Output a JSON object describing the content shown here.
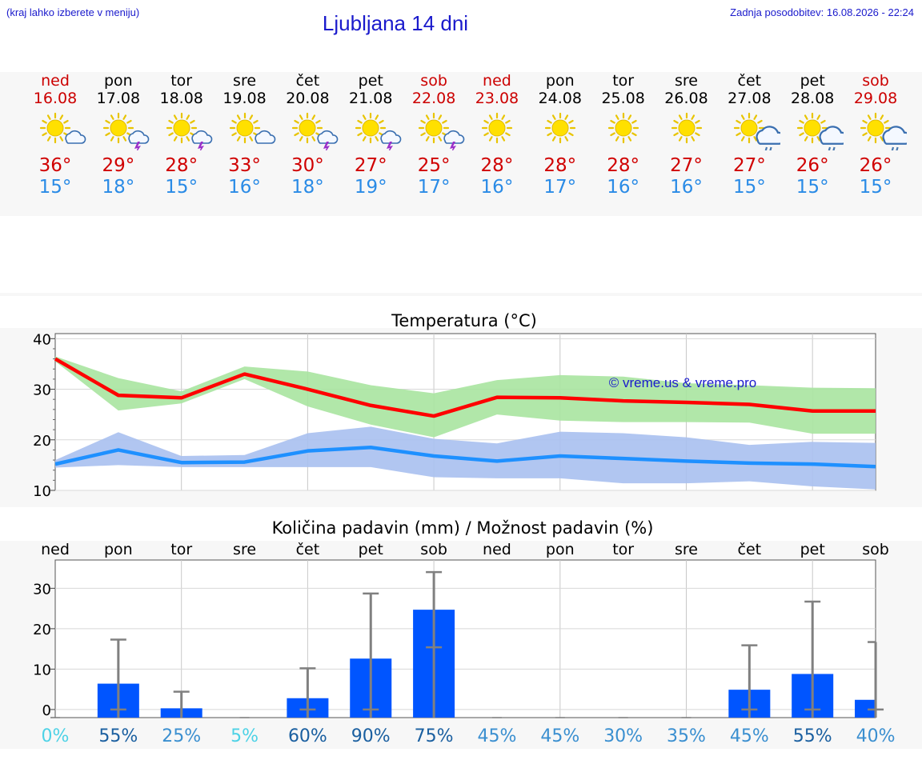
{
  "header": {
    "hint": "(kraj lahko izberete v meniju)",
    "title": "Ljubljana 14 dni",
    "updated": "Zadnja posodobitev: 16.08.2026 - 22:24"
  },
  "days": [
    {
      "name": "ned",
      "date": "16.08",
      "weekend": true,
      "icon": "sun-cloud-icon",
      "tmax": "36°",
      "tmin": "15°"
    },
    {
      "name": "pon",
      "date": "17.08",
      "weekend": false,
      "icon": "sun-storm-icon",
      "tmax": "29°",
      "tmin": "18°"
    },
    {
      "name": "tor",
      "date": "18.08",
      "weekend": false,
      "icon": "sun-storm-icon",
      "tmax": "28°",
      "tmin": "15°"
    },
    {
      "name": "sre",
      "date": "19.08",
      "weekend": false,
      "icon": "sun-cloud-icon",
      "tmax": "33°",
      "tmin": "16°"
    },
    {
      "name": "čet",
      "date": "20.08",
      "weekend": false,
      "icon": "sun-storm-icon",
      "tmax": "30°",
      "tmin": "18°"
    },
    {
      "name": "pet",
      "date": "21.08",
      "weekend": false,
      "icon": "sun-storm-icon",
      "tmax": "27°",
      "tmin": "19°"
    },
    {
      "name": "sob",
      "date": "22.08",
      "weekend": true,
      "icon": "sun-storm-icon",
      "tmax": "25°",
      "tmin": "17°"
    },
    {
      "name": "ned",
      "date": "23.08",
      "weekend": true,
      "icon": "sun-icon",
      "tmax": "28°",
      "tmin": "16°"
    },
    {
      "name": "pon",
      "date": "24.08",
      "weekend": false,
      "icon": "sun-icon",
      "tmax": "28°",
      "tmin": "17°"
    },
    {
      "name": "tor",
      "date": "25.08",
      "weekend": false,
      "icon": "sun-icon",
      "tmax": "28°",
      "tmin": "16°"
    },
    {
      "name": "sre",
      "date": "26.08",
      "weekend": false,
      "icon": "sun-icon",
      "tmax": "27°",
      "tmin": "16°"
    },
    {
      "name": "čet",
      "date": "27.08",
      "weekend": false,
      "icon": "sun-rain-icon",
      "tmax": "27°",
      "tmin": "15°"
    },
    {
      "name": "pet",
      "date": "28.08",
      "weekend": false,
      "icon": "sun-rain-icon",
      "tmax": "26°",
      "tmin": "15°"
    },
    {
      "name": "sob",
      "date": "29.08",
      "weekend": true,
      "icon": "sun-rain-icon",
      "tmax": "26°",
      "tmin": "15°"
    }
  ],
  "colors": {
    "accent": "#1a1acc",
    "weekend": "#cc0000",
    "max_line": "#ff0000",
    "max_band": "#a8e4a0",
    "min_line": "#1e90ff",
    "min_band": "#a8c0f0",
    "bar": "#0055ff",
    "error_bar": "#808080"
  },
  "chart_data": [
    {
      "type": "line",
      "title": "Temperatura (°C)",
      "watermark": "© vreme.us & vreme.pro",
      "ylim": [
        10,
        41
      ],
      "yticks": [
        10,
        20,
        30,
        40
      ],
      "grid": true,
      "series": [
        {
          "name": "max",
          "values": [
            36,
            28.8,
            28.3,
            33,
            30,
            26.8,
            24.7,
            28.4,
            28.3,
            27.7,
            27.4,
            27,
            25.7,
            25.7
          ],
          "band_low": [
            35.5,
            25.8,
            27.2,
            32,
            26.6,
            23,
            20.5,
            25,
            23.8,
            23.5,
            23.5,
            23.4,
            21.2,
            21.2
          ],
          "band_high": [
            36.5,
            32.2,
            29.6,
            34.5,
            33.5,
            30.8,
            29.2,
            31.8,
            32.8,
            32.5,
            31.2,
            30.8,
            30.3,
            30.2
          ]
        },
        {
          "name": "min",
          "values": [
            15.2,
            18,
            15.5,
            15.6,
            17.8,
            18.5,
            16.8,
            15.8,
            16.8,
            16.3,
            15.8,
            15.4,
            15.2,
            14.7
          ],
          "band_low": [
            14.5,
            15,
            14.6,
            14.6,
            14.6,
            14.6,
            12.6,
            12.4,
            12.4,
            11.4,
            11.4,
            11.8,
            10.8,
            10.2
          ],
          "band_high": [
            16,
            21.5,
            16.8,
            17,
            21.3,
            22.6,
            20.2,
            19.3,
            21.6,
            21.3,
            20.5,
            19,
            19.6,
            19.4
          ]
        }
      ]
    },
    {
      "type": "bar",
      "title": "Količina padavin (mm) / Možnost padavin (%)",
      "categories": [
        "ned",
        "pon",
        "tor",
        "sre",
        "čet",
        "pet",
        "sob",
        "ned",
        "pon",
        "tor",
        "sre",
        "čet",
        "pet",
        "sob"
      ],
      "values": [
        0,
        6.4,
        0.3,
        0,
        2.8,
        12.6,
        24.7,
        0,
        0,
        0,
        0,
        4.9,
        8.8,
        2.4
      ],
      "error_high": [
        0,
        17.3,
        4.4,
        0,
        10.2,
        28.7,
        34,
        0,
        0,
        0,
        0,
        15.9,
        26.7,
        16.7
      ],
      "probability": [
        "0%",
        "55%",
        "25%",
        "5%",
        "60%",
        "90%",
        "75%",
        "45%",
        "45%",
        "30%",
        "35%",
        "45%",
        "55%",
        "40%"
      ],
      "probability_colors": [
        "#4dd2e6",
        "#1a5fa0",
        "#3a8fd0",
        "#4dd2e6",
        "#1a5fa0",
        "#1a5fa0",
        "#1a5fa0",
        "#3a8fd0",
        "#3a8fd0",
        "#3a8fd0",
        "#3a8fd0",
        "#3a8fd0",
        "#1a5fa0",
        "#3a8fd0"
      ],
      "ylim": [
        -2,
        37
      ],
      "yticks": [
        0,
        10,
        20,
        30
      ],
      "grid": true
    }
  ]
}
